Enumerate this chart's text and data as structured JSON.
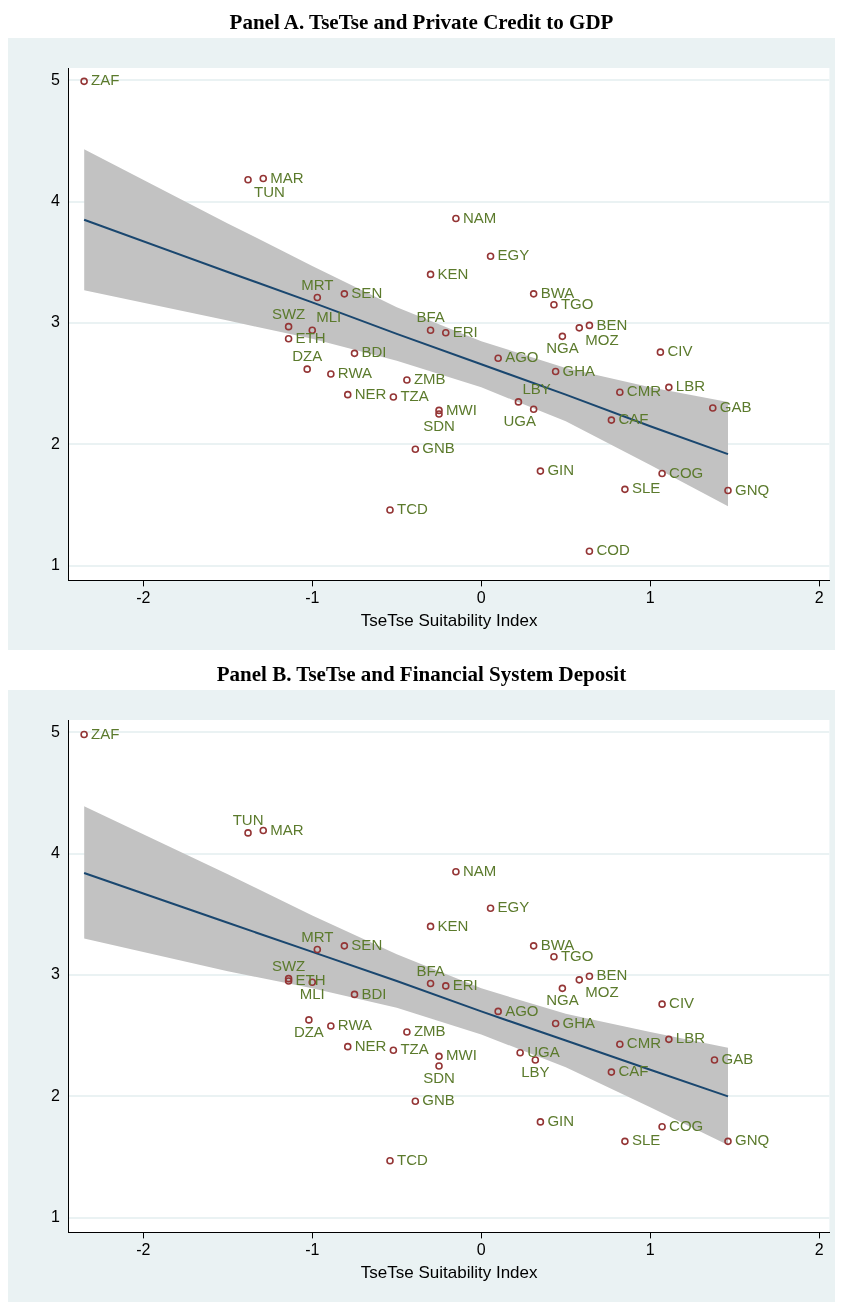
{
  "chart_data": [
    {
      "type": "scatter",
      "title": "Panel A. TseTse and Private Credit to GDP",
      "xlabel": "TseTse Suitability Index",
      "xlim": [
        -2.44,
        2.06
      ],
      "ylim": [
        0.88,
        5.1
      ],
      "xticks": [
        -2,
        -1,
        0,
        1,
        2
      ],
      "yticks": [
        1,
        2,
        3,
        4,
        5
      ],
      "grid": "y",
      "legend": false,
      "series": [
        {
          "marker": "circle",
          "color": "#943535",
          "x": [
            -2.35,
            -1.38,
            -1.29,
            -0.15,
            0.055,
            -0.3,
            0.31,
            -0.81,
            -0.97,
            0.43,
            0.64,
            0.58,
            0.48,
            -1.14,
            -1.0,
            -1.14,
            -0.3,
            -0.21,
            0.1,
            1.06,
            -0.75,
            -1.03,
            0.44,
            -0.89,
            -0.44,
            0.82,
            1.11,
            -0.79,
            -0.52,
            0.22,
            0.31,
            -0.25,
            -0.25,
            1.37,
            0.77,
            -0.39,
            0.35,
            1.07,
            1.46,
            0.85,
            -0.54,
            0.64
          ],
          "values": [
            4.99,
            4.18,
            4.19,
            3.86,
            3.55,
            3.4,
            3.24,
            3.24,
            3.21,
            3.15,
            2.98,
            2.96,
            2.89,
            2.97,
            2.94,
            2.87,
            2.94,
            2.92,
            2.71,
            2.76,
            2.75,
            2.62,
            2.6,
            2.58,
            2.53,
            2.43,
            2.47,
            2.41,
            2.39,
            2.35,
            2.29,
            2.28,
            2.25,
            2.3,
            2.2,
            1.96,
            1.78,
            1.76,
            1.62,
            1.63,
            1.46,
            1.12
          ],
          "value_labels": [
            "ZAF",
            "TUN",
            "MAR",
            "NAM",
            "EGY",
            "KEN",
            "BWA",
            "SEN",
            "MRT",
            "TGO",
            "BEN",
            "MOZ",
            "NGA",
            "SWZ",
            "MLI",
            "ETH",
            "BFA",
            "ERI",
            "AGO",
            "CIV",
            "BDI",
            "DZA",
            "GHA",
            "RWA",
            "ZMB",
            "CMR",
            "LBR",
            "NER",
            "TZA",
            "LBY",
            "UGA",
            "MWI",
            "SDN",
            "GAB",
            "CAF",
            "GNB",
            "GIN",
            "COG",
            "GNQ",
            "SLE",
            "TCD",
            "COD"
          ]
        },
        {
          "type": "line",
          "marker": "none",
          "color": "#1a476f",
          "x": [
            -2.35,
            -1.5,
            -1,
            -0.5,
            0,
            0.5,
            1,
            1.46
          ],
          "values": [
            3.85,
            3.42,
            3.17,
            2.91,
            2.66,
            2.41,
            2.15,
            1.92
          ],
          "lower": [
            3.27,
            3.02,
            2.87,
            2.69,
            2.47,
            2.19,
            1.83,
            1.49
          ],
          "upper": [
            4.43,
            3.82,
            3.47,
            3.13,
            2.85,
            2.63,
            2.47,
            2.35
          ]
        }
      ]
    },
    {
      "type": "scatter",
      "title": "Panel B. TseTse and Financial System Deposit",
      "xlabel": "TseTse Suitability Index",
      "xlim": [
        -2.44,
        2.06
      ],
      "ylim": [
        0.88,
        5.1
      ],
      "xticks": [
        -2,
        -1,
        0,
        1,
        2
      ],
      "yticks": [
        1,
        2,
        3,
        4,
        5
      ],
      "grid": "y",
      "legend": false,
      "series": [
        {
          "marker": "circle",
          "color": "#943535",
          "x": [
            -2.35,
            -1.38,
            -1.29,
            -0.15,
            0.055,
            -0.3,
            0.31,
            -0.81,
            -0.97,
            0.43,
            0.64,
            0.58,
            0.48,
            -1.14,
            -1.0,
            -1.14,
            -0.3,
            -0.21,
            0.1,
            1.07,
            -0.75,
            -1.02,
            0.44,
            -0.89,
            -0.44,
            0.82,
            1.11,
            -0.79,
            -0.52,
            0.32,
            0.23,
            -0.25,
            -0.25,
            1.38,
            0.77,
            -0.39,
            0.35,
            1.07,
            1.46,
            0.85,
            -0.54
          ],
          "values": [
            4.98,
            4.17,
            4.19,
            3.85,
            3.55,
            3.4,
            3.24,
            3.24,
            3.21,
            3.15,
            2.99,
            2.96,
            2.89,
            2.97,
            2.94,
            2.95,
            2.93,
            2.91,
            2.7,
            2.76,
            2.84,
            2.63,
            2.6,
            2.58,
            2.53,
            2.43,
            2.47,
            2.41,
            2.38,
            2.3,
            2.36,
            2.33,
            2.25,
            2.3,
            2.2,
            1.96,
            1.79,
            1.75,
            1.63,
            1.63,
            1.47
          ],
          "value_labels": [
            "ZAF",
            "TUN",
            "MAR",
            "NAM",
            "EGY",
            "KEN",
            "BWA",
            "SEN",
            "MRT",
            "TGO",
            "BEN",
            "MOZ",
            "NGA",
            "SWZ",
            "MLI",
            "ETH",
            "BFA",
            "ERI",
            "AGO",
            "CIV",
            "BDI",
            "DZA",
            "GHA",
            "RWA",
            "ZMB",
            "CMR",
            "LBR",
            "NER",
            "TZA",
            "LBY",
            "UGA",
            "MWI",
            "SDN",
            "GAB",
            "CAF",
            "GNB",
            "GIN",
            "COG",
            "GNQ",
            "SLE",
            "TCD"
          ]
        },
        {
          "type": "line",
          "marker": "none",
          "color": "#1a476f",
          "x": [
            -2.35,
            -1.5,
            -1,
            -0.5,
            0,
            0.5,
            1,
            1.46
          ],
          "values": [
            3.84,
            3.43,
            3.19,
            2.95,
            2.7,
            2.46,
            2.22,
            2.0
          ],
          "lower": [
            3.3,
            3.03,
            2.89,
            2.73,
            2.51,
            2.24,
            1.91,
            1.6
          ],
          "upper": [
            4.39,
            3.83,
            3.49,
            3.17,
            2.89,
            2.68,
            2.53,
            2.4
          ]
        }
      ]
    }
  ]
}
